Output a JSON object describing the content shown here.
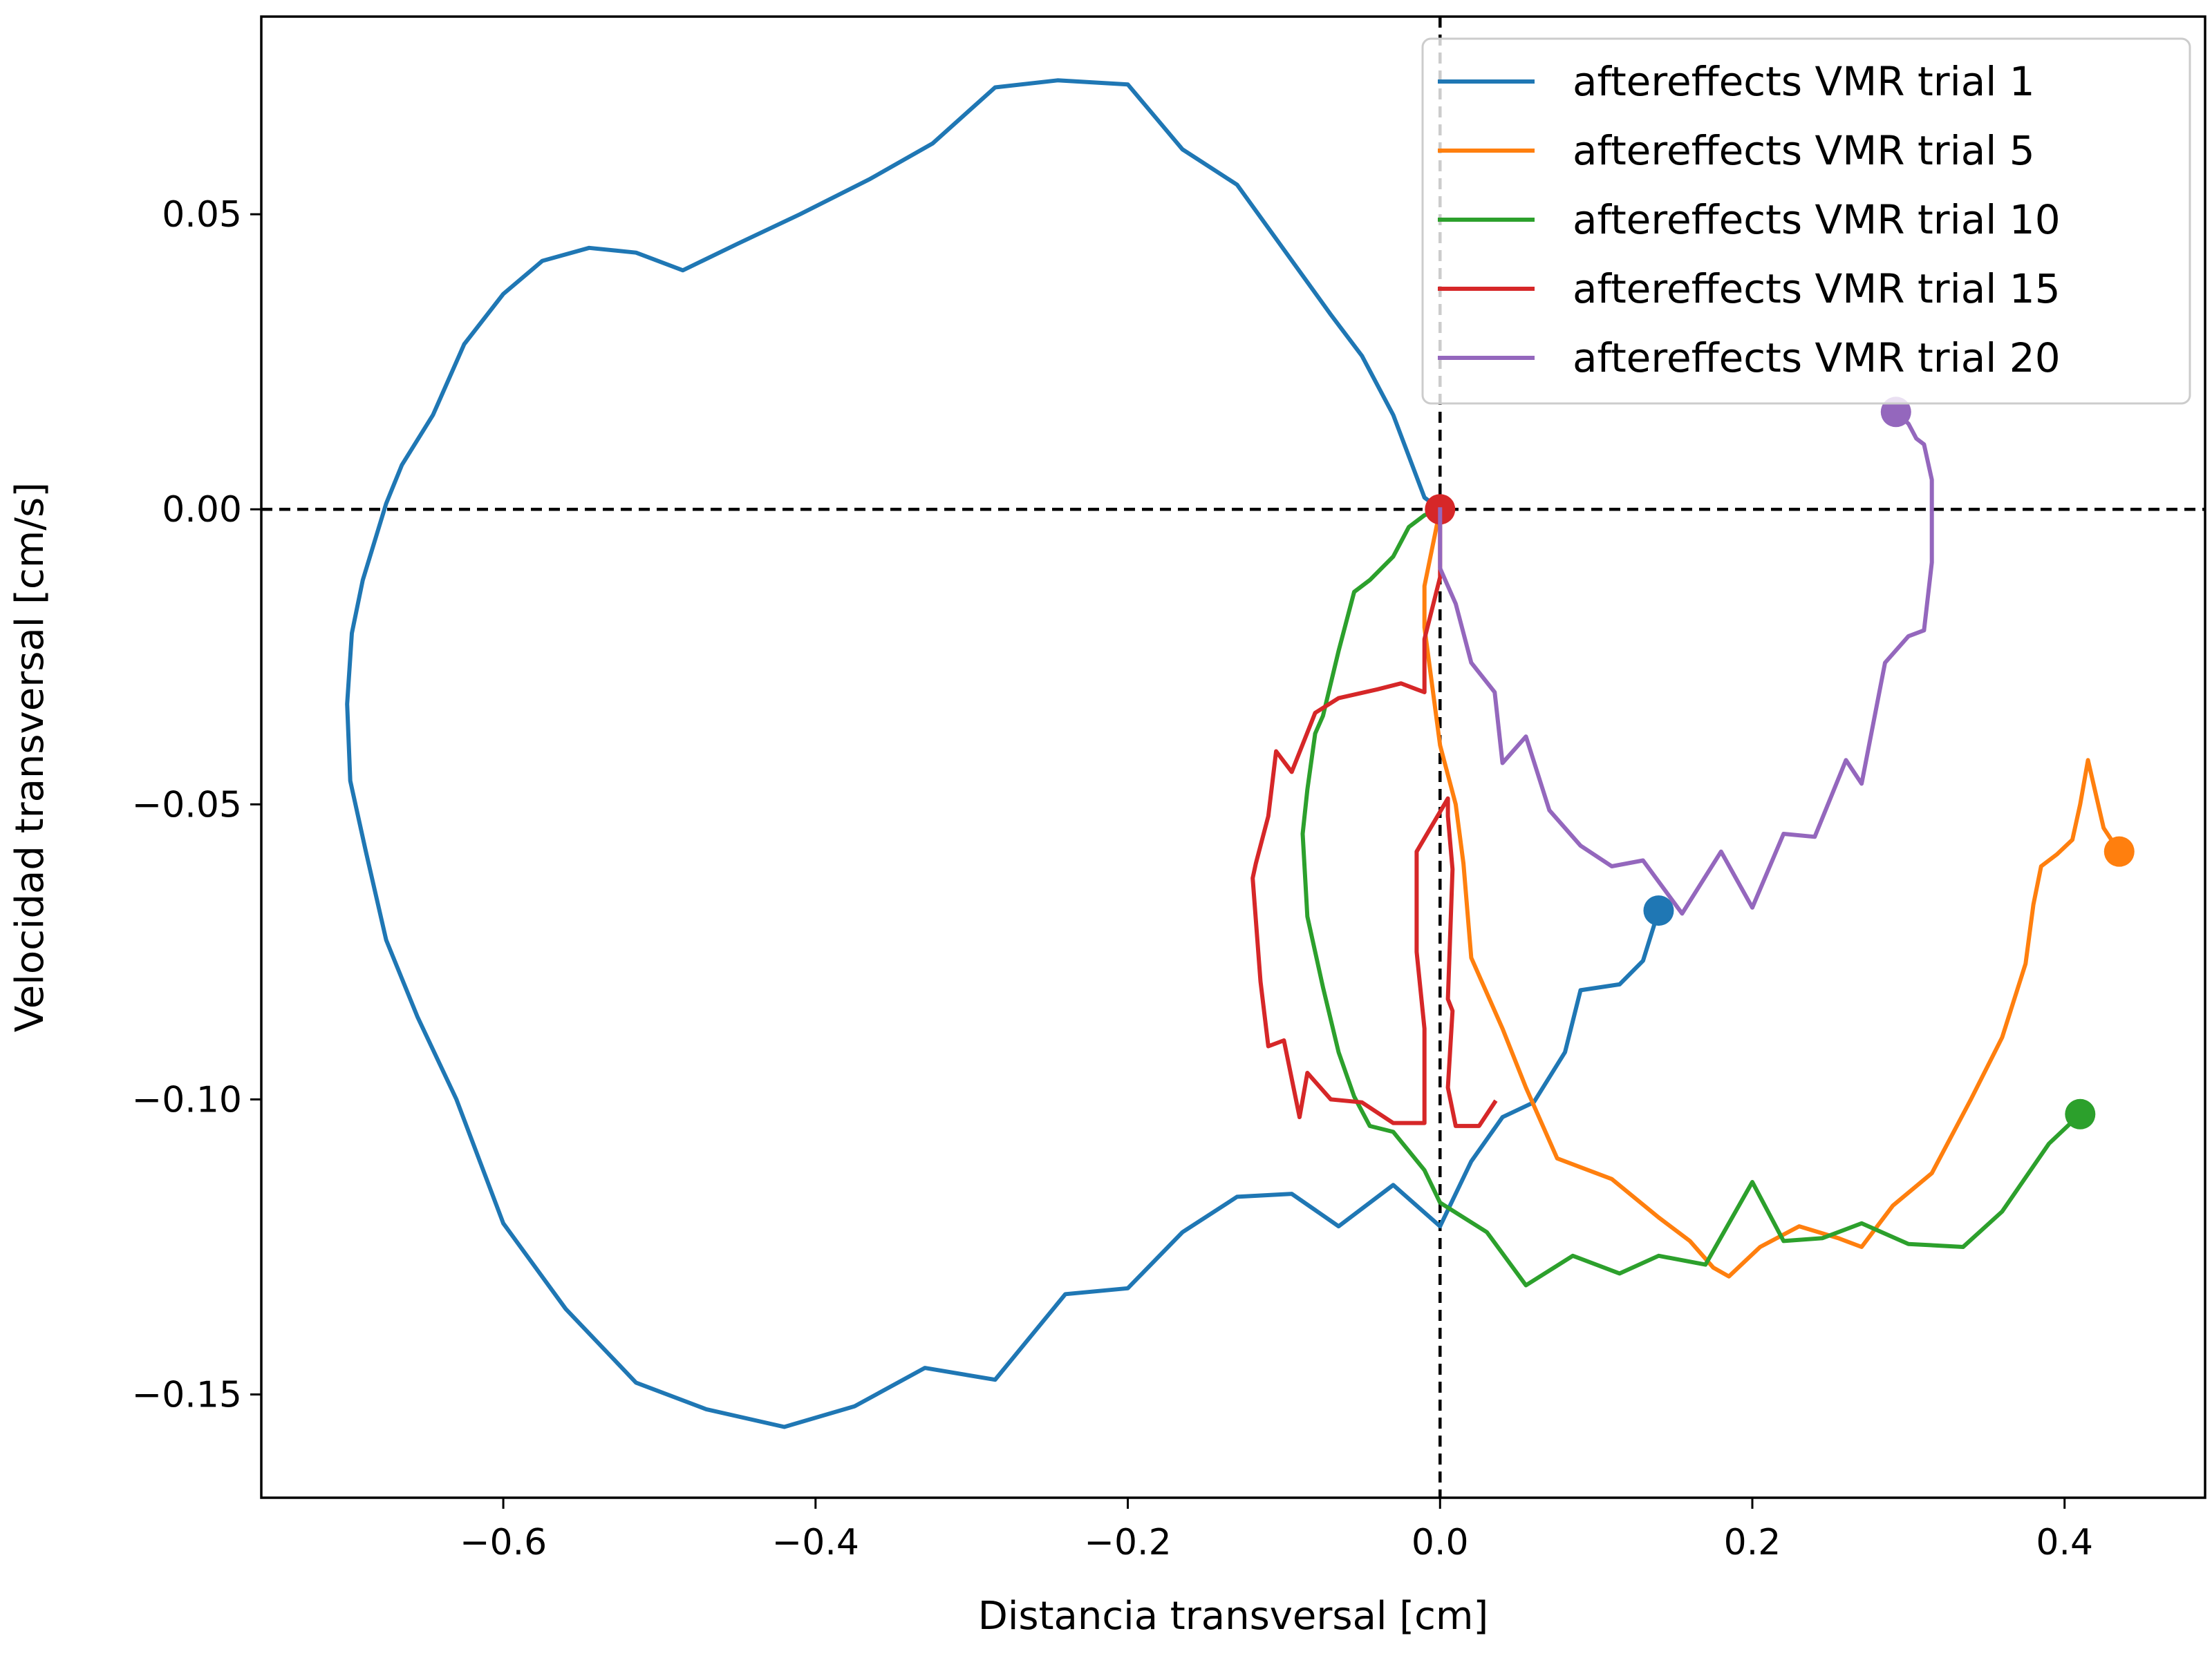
{
  "chart_data": {
    "type": "line",
    "title": "",
    "xlabel": "Distancia transversal [cm]",
    "ylabel": "Velocidad transversal [cm/s]",
    "xlim": [
      -0.755,
      0.49
    ],
    "ylim": [
      -0.1675,
      0.0835
    ],
    "xticks": [
      -0.6,
      -0.4,
      -0.2,
      0.0,
      0.2,
      0.4
    ],
    "xtick_labels": [
      "−0.6",
      "−0.4",
      "−0.2",
      "0.0",
      "0.2",
      "0.4"
    ],
    "yticks": [
      -0.15,
      -0.1,
      -0.05,
      0.0,
      0.05
    ],
    "ytick_labels": [
      "−0.15",
      "−0.10",
      "−0.05",
      "0.00",
      "0.05"
    ],
    "grid": false,
    "reference_lines": {
      "x": 0,
      "y": 0,
      "style": "dashed",
      "color": "#000000"
    },
    "legend_position": "top-right",
    "series": [
      {
        "name": "aftereffects VMR trial 1",
        "color": "#1f77b4",
        "end_marker": true,
        "points": [
          [
            0.0,
            0.0
          ],
          [
            -0.01,
            0.002
          ],
          [
            -0.03,
            0.016
          ],
          [
            -0.05,
            0.026
          ],
          [
            -0.07,
            0.033
          ],
          [
            -0.1,
            0.044
          ],
          [
            -0.13,
            0.055
          ],
          [
            -0.165,
            0.061
          ],
          [
            -0.2,
            0.072
          ],
          [
            -0.245,
            0.0727
          ],
          [
            -0.285,
            0.0715
          ],
          [
            -0.325,
            0.062
          ],
          [
            -0.365,
            0.056
          ],
          [
            -0.41,
            0.05
          ],
          [
            -0.45,
            0.045
          ],
          [
            -0.485,
            0.0405
          ],
          [
            -0.515,
            0.0435
          ],
          [
            -0.545,
            0.0443
          ],
          [
            -0.575,
            0.0421
          ],
          [
            -0.6,
            0.0365
          ],
          [
            -0.625,
            0.028
          ],
          [
            -0.645,
            0.016
          ],
          [
            -0.665,
            0.0075
          ],
          [
            -0.675,
            0.001
          ],
          [
            -0.69,
            -0.012
          ],
          [
            -0.697,
            -0.021
          ],
          [
            -0.7,
            -0.033
          ],
          [
            -0.698,
            -0.046
          ],
          [
            -0.688,
            -0.058
          ],
          [
            -0.675,
            -0.073
          ],
          [
            -0.655,
            -0.086
          ],
          [
            -0.63,
            -0.1
          ],
          [
            -0.6,
            -0.121
          ],
          [
            -0.56,
            -0.1355
          ],
          [
            -0.515,
            -0.148
          ],
          [
            -0.47,
            -0.1525
          ],
          [
            -0.42,
            -0.1555
          ],
          [
            -0.375,
            -0.152
          ],
          [
            -0.33,
            -0.1455
          ],
          [
            -0.285,
            -0.1475
          ],
          [
            -0.24,
            -0.133
          ],
          [
            -0.2,
            -0.132
          ],
          [
            -0.165,
            -0.1225
          ],
          [
            -0.13,
            -0.1165
          ],
          [
            -0.095,
            -0.116
          ],
          [
            -0.065,
            -0.1215
          ],
          [
            -0.03,
            -0.1145
          ],
          [
            0.0,
            -0.1215
          ],
          [
            0.02,
            -0.1105
          ],
          [
            0.04,
            -0.103
          ],
          [
            0.06,
            -0.1005
          ],
          [
            0.08,
            -0.092
          ],
          [
            0.09,
            -0.0815
          ],
          [
            0.115,
            -0.0805
          ],
          [
            0.13,
            -0.0765
          ],
          [
            0.14,
            -0.068
          ]
        ]
      },
      {
        "name": "aftereffects VMR trial 5",
        "color": "#ff7f0e",
        "end_marker": true,
        "points": [
          [
            0.0,
            0.0
          ],
          [
            -0.01,
            -0.013
          ],
          [
            -0.01,
            -0.02
          ],
          [
            -0.005,
            -0.03
          ],
          [
            0.0,
            -0.04
          ],
          [
            0.01,
            -0.05
          ],
          [
            0.015,
            -0.06
          ],
          [
            0.02,
            -0.076
          ],
          [
            0.04,
            -0.088
          ],
          [
            0.055,
            -0.098
          ],
          [
            0.065,
            -0.104
          ],
          [
            0.075,
            -0.11
          ],
          [
            0.11,
            -0.1135
          ],
          [
            0.14,
            -0.12
          ],
          [
            0.16,
            -0.124
          ],
          [
            0.175,
            -0.1285
          ],
          [
            0.185,
            -0.13
          ],
          [
            0.205,
            -0.125
          ],
          [
            0.23,
            -0.1215
          ],
          [
            0.255,
            -0.1235
          ],
          [
            0.27,
            -0.125
          ],
          [
            0.29,
            -0.118
          ],
          [
            0.315,
            -0.1125
          ],
          [
            0.34,
            -0.1
          ],
          [
            0.36,
            -0.0895
          ],
          [
            0.375,
            -0.077
          ],
          [
            0.38,
            -0.067
          ],
          [
            0.385,
            -0.0605
          ],
          [
            0.395,
            -0.0585
          ],
          [
            0.405,
            -0.056
          ],
          [
            0.41,
            -0.05
          ],
          [
            0.415,
            -0.0425
          ],
          [
            0.425,
            -0.054
          ],
          [
            0.435,
            -0.058
          ]
        ]
      },
      {
        "name": "aftereffects VMR trial 10",
        "color": "#2ca02c",
        "end_marker": true,
        "points": [
          [
            0.0,
            0.0
          ],
          [
            -0.01,
            -0.001
          ],
          [
            -0.02,
            -0.003
          ],
          [
            -0.03,
            -0.008
          ],
          [
            -0.045,
            -0.012
          ],
          [
            -0.055,
            -0.014
          ],
          [
            -0.065,
            -0.024
          ],
          [
            -0.075,
            -0.035
          ],
          [
            -0.08,
            -0.038
          ],
          [
            -0.085,
            -0.0475
          ],
          [
            -0.088,
            -0.055
          ],
          [
            -0.085,
            -0.069
          ],
          [
            -0.075,
            -0.081
          ],
          [
            -0.065,
            -0.092
          ],
          [
            -0.055,
            -0.0995
          ],
          [
            -0.045,
            -0.1045
          ],
          [
            -0.03,
            -0.1055
          ],
          [
            -0.01,
            -0.112
          ],
          [
            0.0,
            -0.1175
          ],
          [
            0.03,
            -0.1225
          ],
          [
            0.055,
            -0.1315
          ],
          [
            0.085,
            -0.1265
          ],
          [
            0.115,
            -0.1295
          ],
          [
            0.14,
            -0.1265
          ],
          [
            0.17,
            -0.128
          ],
          [
            0.2,
            -0.114
          ],
          [
            0.22,
            -0.124
          ],
          [
            0.245,
            -0.1235
          ],
          [
            0.27,
            -0.121
          ],
          [
            0.3,
            -0.1245
          ],
          [
            0.335,
            -0.125
          ],
          [
            0.36,
            -0.119
          ],
          [
            0.39,
            -0.1075
          ],
          [
            0.41,
            -0.1025
          ]
        ]
      },
      {
        "name": "aftereffects VMR trial 15",
        "color": "#d62728",
        "end_marker": true,
        "points": [
          [
            0.035,
            -0.1005
          ],
          [
            0.025,
            -0.1045
          ],
          [
            0.01,
            -0.1045
          ],
          [
            0.005,
            -0.098
          ],
          [
            0.008,
            -0.085
          ],
          [
            0.005,
            -0.083
          ],
          [
            0.008,
            -0.061
          ],
          [
            0.005,
            -0.052
          ],
          [
            0.005,
            -0.049
          ],
          [
            -0.015,
            -0.058
          ],
          [
            -0.015,
            -0.065
          ],
          [
            -0.015,
            -0.075
          ],
          [
            -0.01,
            -0.088
          ],
          [
            -0.01,
            -0.1
          ],
          [
            -0.01,
            -0.104
          ],
          [
            -0.03,
            -0.104
          ],
          [
            -0.05,
            -0.1005
          ],
          [
            -0.07,
            -0.1
          ],
          [
            -0.085,
            -0.0955
          ],
          [
            -0.09,
            -0.103
          ],
          [
            -0.1,
            -0.09
          ],
          [
            -0.11,
            -0.091
          ],
          [
            -0.115,
            -0.08
          ],
          [
            -0.12,
            -0.0625
          ],
          [
            -0.118,
            -0.06
          ],
          [
            -0.11,
            -0.052
          ],
          [
            -0.105,
            -0.041
          ],
          [
            -0.095,
            -0.0445
          ],
          [
            -0.08,
            -0.0345
          ],
          [
            -0.065,
            -0.032
          ],
          [
            -0.04,
            -0.0305
          ],
          [
            -0.025,
            -0.0295
          ],
          [
            -0.015,
            -0.0305
          ],
          [
            -0.01,
            -0.031
          ],
          [
            -0.01,
            -0.022
          ],
          [
            0.0,
            -0.0115
          ],
          [
            0.0,
            0.0
          ]
        ]
      },
      {
        "name": "aftereffects VMR trial 20",
        "color": "#9467bd",
        "end_marker": true,
        "points": [
          [
            0.0,
            0.0
          ],
          [
            0.0,
            -0.01
          ],
          [
            0.01,
            -0.016
          ],
          [
            0.02,
            -0.026
          ],
          [
            0.035,
            -0.031
          ],
          [
            0.04,
            -0.043
          ],
          [
            0.055,
            -0.0385
          ],
          [
            0.07,
            -0.051
          ],
          [
            0.09,
            -0.057
          ],
          [
            0.11,
            -0.0605
          ],
          [
            0.13,
            -0.0595
          ],
          [
            0.155,
            -0.0685
          ],
          [
            0.18,
            -0.058
          ],
          [
            0.2,
            -0.0675
          ],
          [
            0.22,
            -0.055
          ],
          [
            0.24,
            -0.0555
          ],
          [
            0.26,
            -0.0425
          ],
          [
            0.27,
            -0.0465
          ],
          [
            0.285,
            -0.026
          ],
          [
            0.3,
            -0.0215
          ],
          [
            0.31,
            -0.0205
          ],
          [
            0.315,
            -0.009
          ],
          [
            0.315,
            0.005
          ],
          [
            0.31,
            0.011
          ],
          [
            0.305,
            0.012
          ],
          [
            0.3,
            0.0145
          ],
          [
            0.292,
            0.0165
          ]
        ]
      }
    ]
  }
}
